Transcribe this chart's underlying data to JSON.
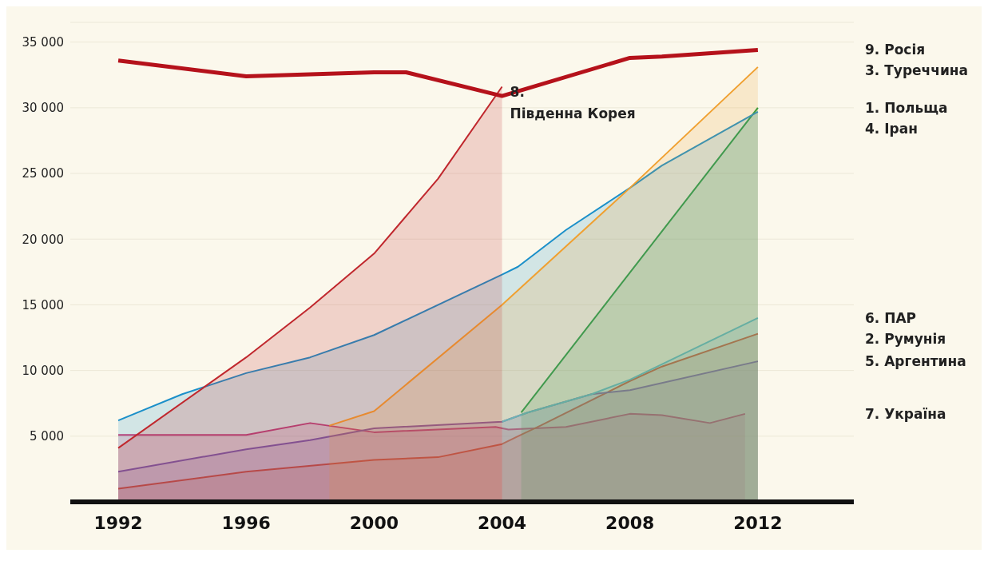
{
  "chart_data": {
    "type": "area",
    "xlim": [
      1990.5,
      2015
    ],
    "xticks": [
      1992,
      1996,
      2000,
      2004,
      2008,
      2012
    ],
    "ylim": [
      0,
      36500
    ],
    "yticks": [
      {
        "value": 5000,
        "label": "5 000"
      },
      {
        "value": 10000,
        "label": "10 000"
      },
      {
        "value": 15000,
        "label": "15 000"
      },
      {
        "value": 20000,
        "label": "20 000"
      },
      {
        "value": 25000,
        "label": "25 000"
      },
      {
        "value": 30000,
        "label": "30 000"
      },
      {
        "value": 35000,
        "label": "35 000"
      }
    ],
    "grid": "y",
    "series": [
      {
        "name": "7. Україна",
        "color": "#d6336c",
        "x": [
          1992,
          1996,
          1998,
          2000,
          2003.8,
          2004.2,
          2005,
          2006,
          2008,
          2009,
          2010.5,
          2011.6
        ],
        "values": [
          5100,
          5100,
          6000,
          5300,
          5700,
          5500,
          5600,
          5700,
          6700,
          6600,
          6000,
          6700
        ]
      },
      {
        "name": "2. Румунія",
        "color": "#e8431e",
        "x": [
          1992,
          1996,
          2000,
          2002,
          2004,
          2004.5,
          2005.2,
          2008,
          2009,
          2012
        ],
        "values": [
          1000,
          2300,
          3200,
          3400,
          4400,
          5000,
          5800,
          9200,
          10300,
          12800
        ]
      },
      {
        "name": "5. Аргентина",
        "color": "#8a4fa0",
        "x": [
          1992,
          1996,
          1998,
          2000,
          2004,
          2004.8,
          2006.8,
          2008,
          2012
        ],
        "values": [
          2300,
          4000,
          4700,
          5600,
          6100,
          6800,
          8200,
          8500,
          10700
        ]
      },
      {
        "name": "6. ПАР",
        "color": "#5fc0d6",
        "x": [
          2004,
          2004.8,
          2006.8,
          2008,
          2012
        ],
        "values": [
          6100,
          6800,
          8200,
          9300,
          14000
        ]
      },
      {
        "name": "1. Польща",
        "color": "#1a9a3a",
        "x": [
          2004.6,
          2012
        ],
        "values": [
          6800,
          30000
        ]
      },
      {
        "name": "4. Іран",
        "color": "#1a8fc9",
        "x": [
          1992,
          1994,
          1996,
          1998,
          2000,
          2004,
          2004.5,
          2006,
          2008,
          2009,
          2012
        ],
        "values": [
          6200,
          8200,
          9800,
          11000,
          12700,
          17300,
          17900,
          20700,
          23900,
          25600,
          29700
        ]
      },
      {
        "name": "3. Туреччина",
        "color": "#f0a030",
        "x": [
          1998.6,
          2000,
          2004,
          2008,
          2012
        ],
        "values": [
          5800,
          6900,
          15000,
          23900,
          33100
        ]
      },
      {
        "name": "8. Південна Корея",
        "color": "#c0272d",
        "x": [
          1992,
          1996,
          1998,
          2000,
          2002,
          2004
        ],
        "values": [
          4100,
          11000,
          14800,
          18900,
          24600,
          31600
        ]
      },
      {
        "name": "9. Росія",
        "color": "#b5121b",
        "type": "line",
        "x": [
          1992,
          1996,
          2000,
          2001,
          2004,
          2008,
          2009,
          2012
        ],
        "values": [
          33600,
          32400,
          32700,
          32700,
          30900,
          33800,
          33900,
          34400
        ]
      }
    ]
  }
}
